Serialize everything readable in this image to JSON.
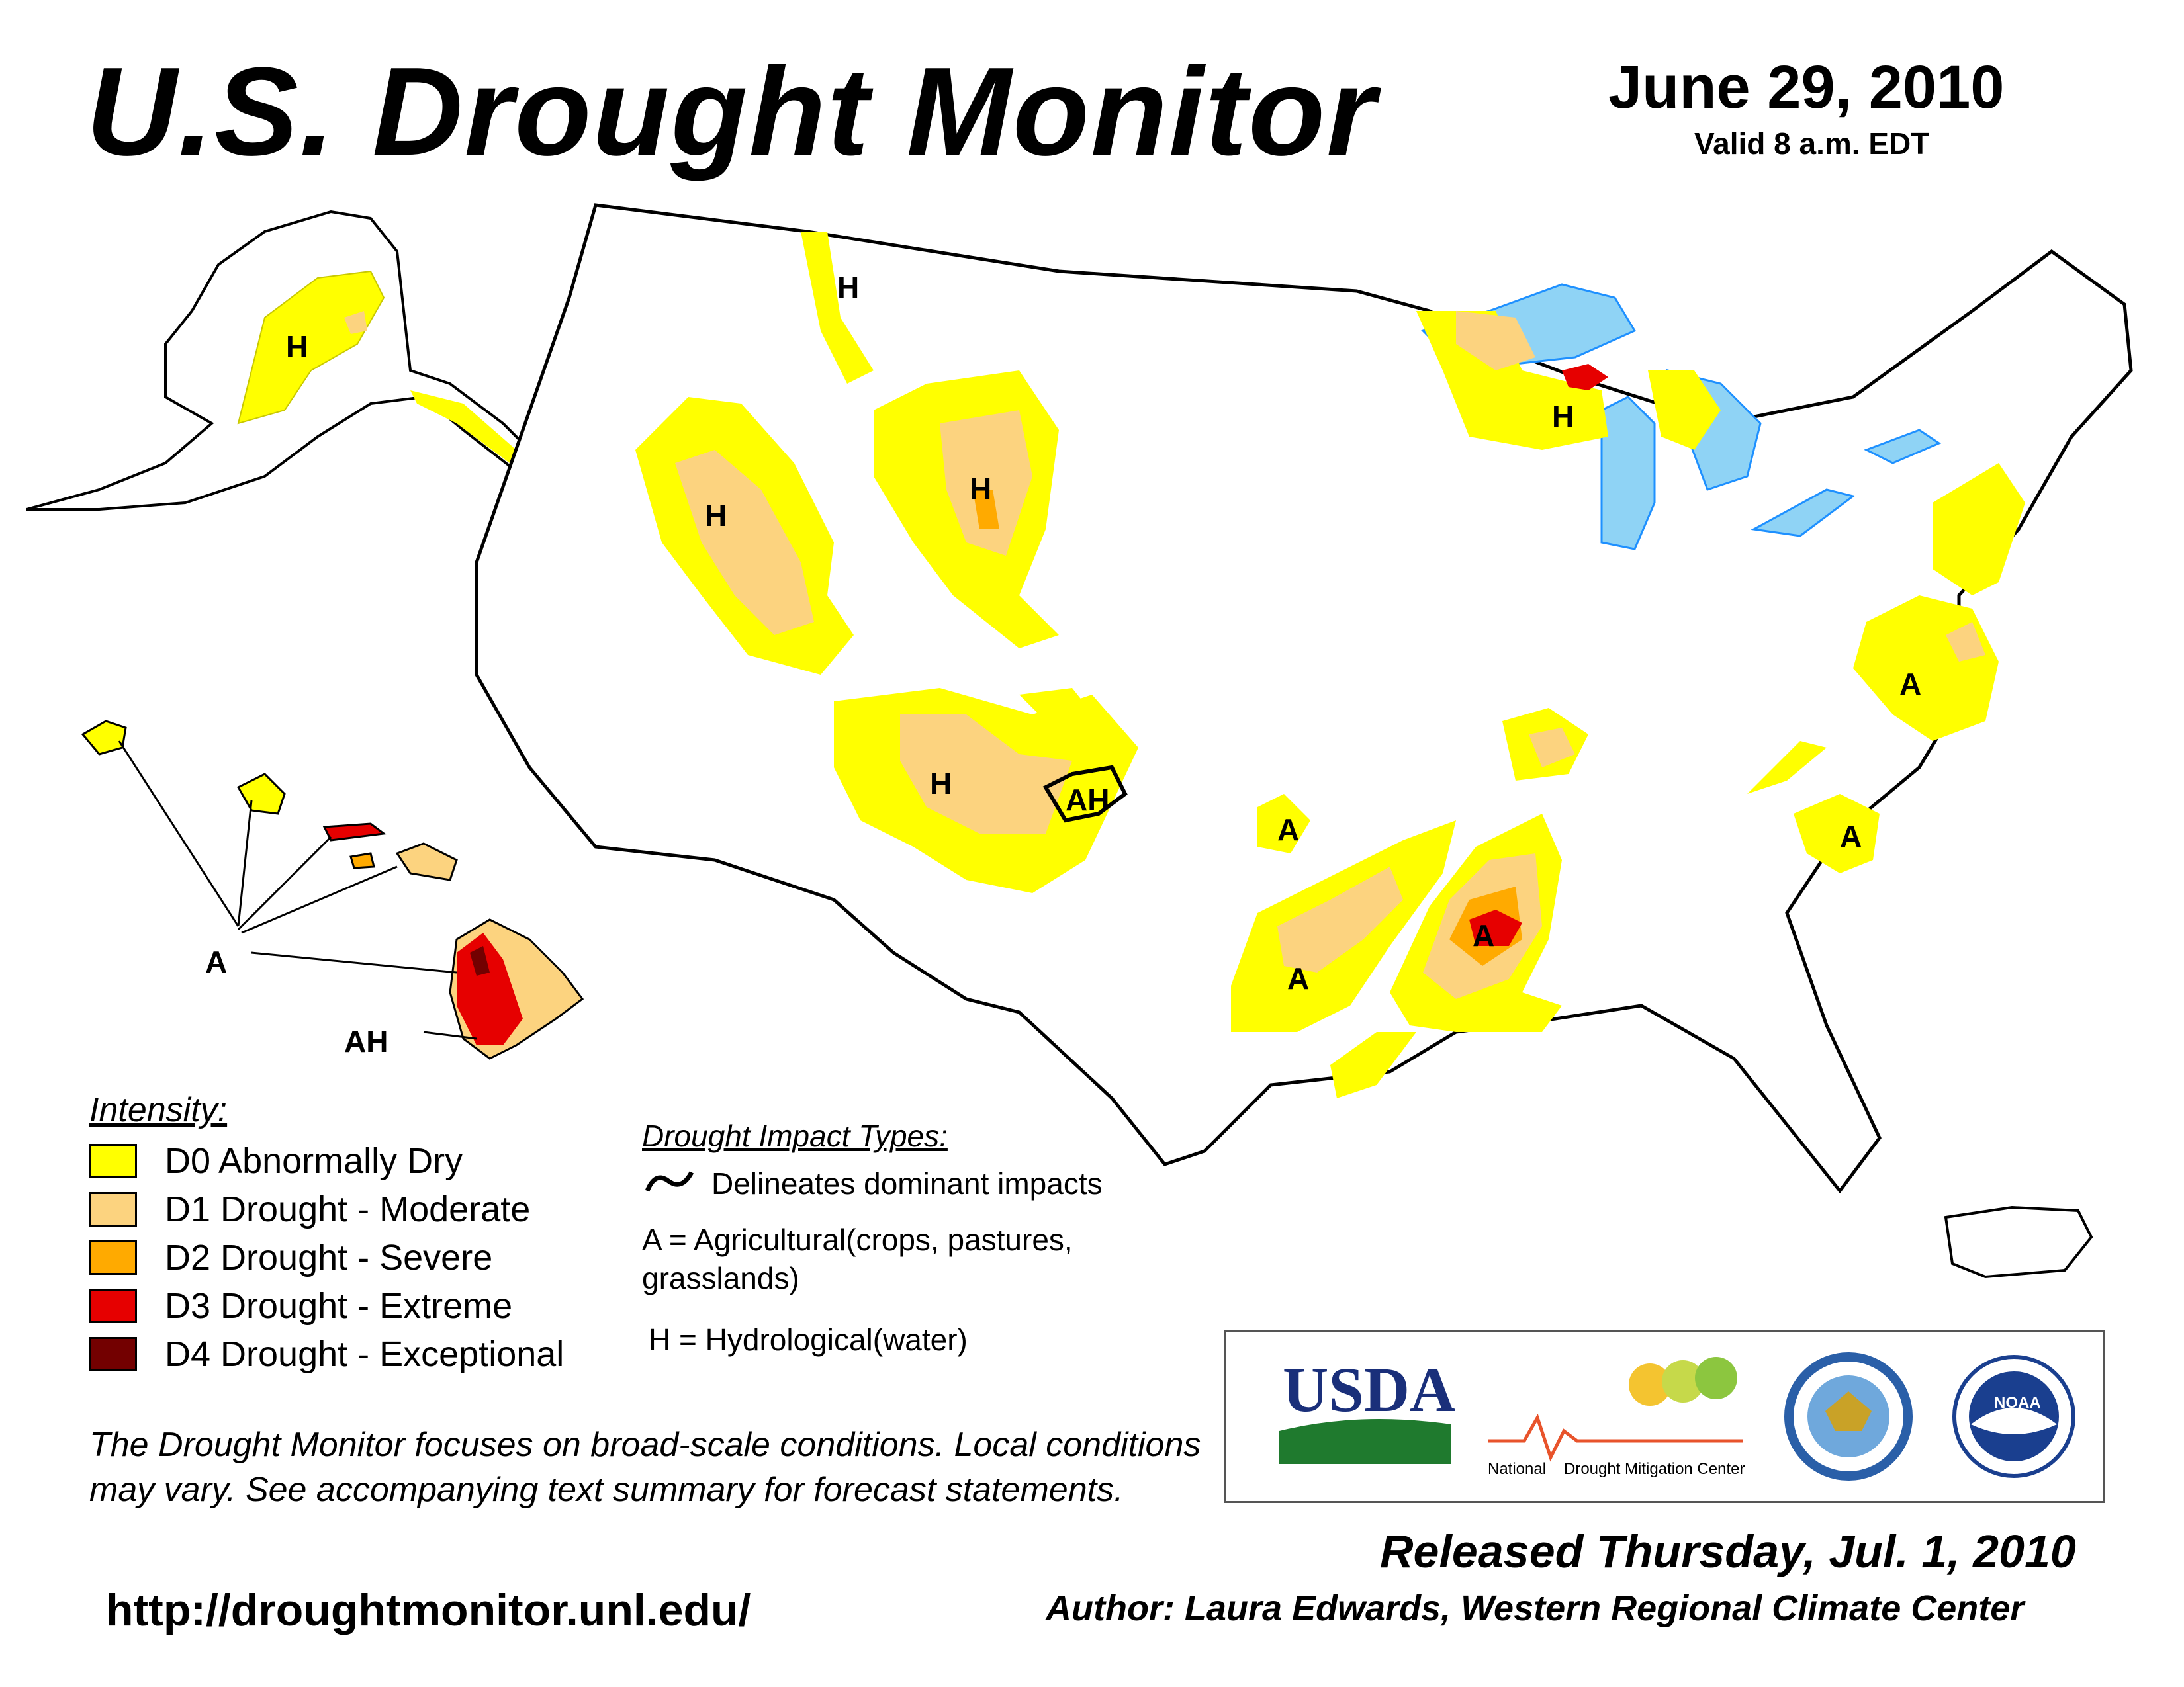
{
  "header": {
    "title": "U.S. Drought Monitor",
    "date": "June 29, 2010",
    "valid": "Valid 8 a.m. EDT"
  },
  "colors": {
    "D0": "#ffff00",
    "D1": "#fcd37f",
    "D2": "#ffaa00",
    "D3": "#e60000",
    "D4": "#730000",
    "water": "#8fd3f5",
    "rivers": "#1e90ff",
    "state_borders": "#000000",
    "county_borders": "#888888"
  },
  "legend": {
    "title": "Intensity:",
    "items": [
      {
        "code": "D0",
        "label": "D0 Abnormally Dry"
      },
      {
        "code": "D1",
        "label": "D1 Drought - Moderate"
      },
      {
        "code": "D2",
        "label": "D2 Drought - Severe"
      },
      {
        "code": "D3",
        "label": "D3 Drought - Extreme"
      },
      {
        "code": "D4",
        "label": "D4 Drought - Exceptional"
      }
    ]
  },
  "impact_types": {
    "title": "Drought Impact Types:",
    "line_label": "Delineates dominant impacts",
    "a_label": "A = Agricultural(crops, pastures, grasslands)",
    "h_label": "H = Hydrological(water)"
  },
  "map_labels": {
    "alaska": "H",
    "hawaii_a": "A",
    "hawaii_ah": "AH",
    "idaho_montana": "H",
    "oregon_nevada": "H",
    "wyoming": "H",
    "upper_michigan": "H",
    "arizona_nm": "H",
    "new_mexico": "AH",
    "oklahoma": "A",
    "texas": "A",
    "louisiana_arkansas": "A",
    "virginia": "A",
    "south_carolina": "A"
  },
  "disclaimer": "The Drought Monitor focuses on broad-scale conditions. Local conditions may vary. See accompanying text summary for forecast statements.",
  "url": "http://droughtmonitor.unl.edu/",
  "released": "Released Thursday, Jul. 1, 2010",
  "author": "Author: Laura Edwards, Western Regional Climate Center",
  "logos": {
    "usda_text": "USDA",
    "ndmc_text_1": "National",
    "ndmc_text_2": "Drought Mitigation Center",
    "commerce_seal_icon": "department-of-commerce-seal-icon",
    "noaa_text": "NOAA"
  }
}
